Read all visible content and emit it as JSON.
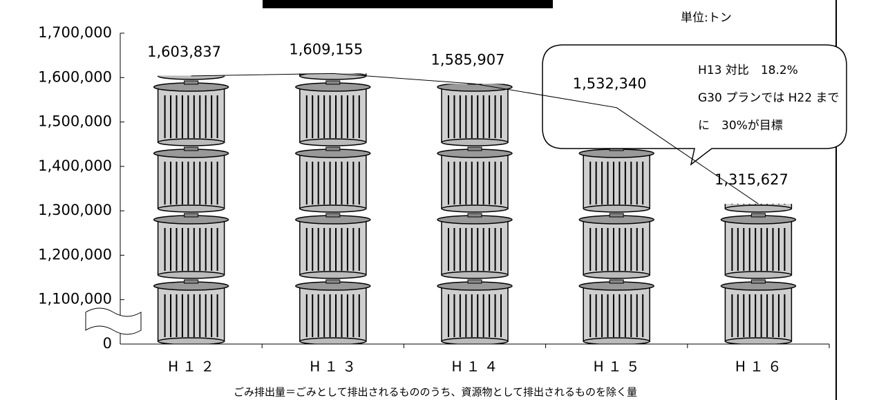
{
  "chart_data": {
    "type": "pictograph",
    "unit_label": "単位:トン",
    "categories": [
      "H１２",
      "H１３",
      "H１４",
      "H１５",
      "H１６"
    ],
    "values": [
      1603837,
      1609155,
      1585907,
      1532340,
      1315627
    ],
    "value_labels": [
      "1,603,837",
      "1,609,155",
      "1,585,907",
      "1,532,340",
      "1,315,627"
    ],
    "ylim": [
      0,
      1700000
    ],
    "axis_break": [
      0,
      1000000
    ],
    "yticks": [
      {
        "value": 0,
        "label": "0"
      },
      {
        "value": 1100000,
        "label": "1,100,000"
      },
      {
        "value": 1200000,
        "label": "1,200,000"
      },
      {
        "value": 1300000,
        "label": "1,300,000"
      },
      {
        "value": 1400000,
        "label": "1,400,000"
      },
      {
        "value": 1500000,
        "label": "1,500,000"
      },
      {
        "value": 1600000,
        "label": "1,600,000"
      },
      {
        "value": 1700000,
        "label": "1,700,000"
      }
    ],
    "annotation": [
      "H13 対比　18.2%",
      "G30 プランでは H22 まで",
      "に　30%が目標"
    ],
    "footnote": "ごみ排出量＝ごみとして排出されるもののうち、資源物として排出されるものを除く量"
  }
}
